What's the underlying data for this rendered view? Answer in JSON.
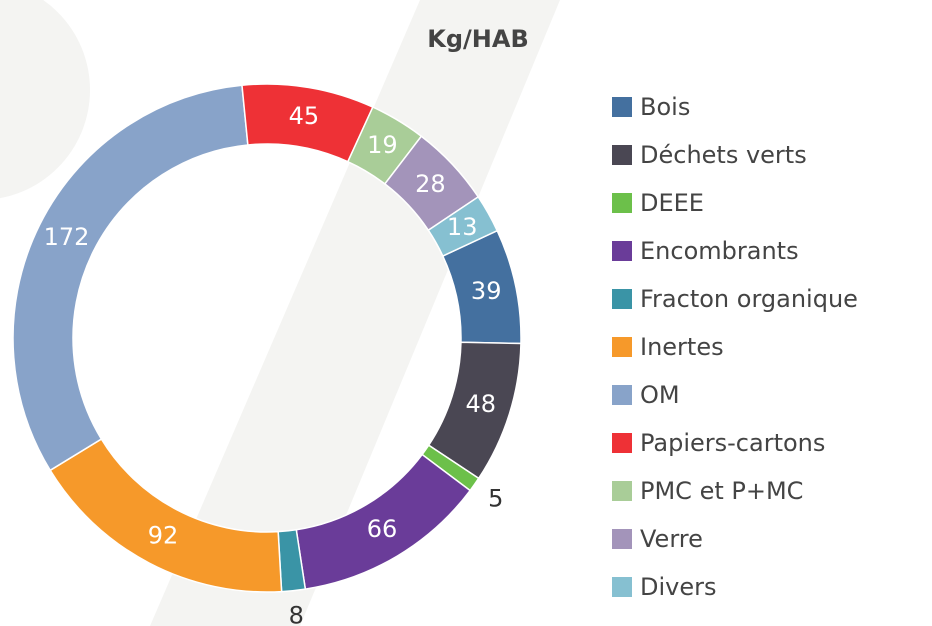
{
  "chart_data": {
    "type": "donut",
    "title": "Kg/HAB",
    "categories": [
      "Bois",
      "Déchets verts",
      "DEEE",
      "Encombrants",
      "Fracton organique",
      "Inertes",
      "OM",
      "Papiers-cartons",
      "PMC et P+MC",
      "Verre",
      "Divers"
    ],
    "values": [
      39,
      48,
      5,
      66,
      8,
      92,
      172,
      45,
      19,
      28,
      13
    ],
    "colors": [
      "#44709f",
      "#4a4753",
      "#6cc04a",
      "#6a3c99",
      "#3a94a6",
      "#f6992a",
      "#88a3c9",
      "#ee3136",
      "#a9cd98",
      "#a394ba",
      "#86c0d1"
    ],
    "legend": "right"
  }
}
